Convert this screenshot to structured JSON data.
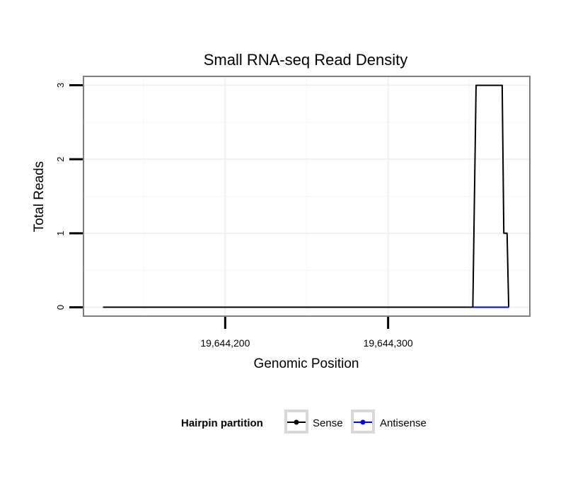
{
  "chart_data": {
    "type": "line",
    "title": "Small RNA-seq Read Density",
    "xlabel": "Genomic Position",
    "ylabel": "Total Reads",
    "xlim": [
      19644113,
      19644387
    ],
    "ylim": [
      -0.12,
      3.12
    ],
    "xticks": [
      19644200,
      19644300
    ],
    "xtick_labels": [
      "19,644,200",
      "19,644,300"
    ],
    "yticks": [
      0,
      1,
      2,
      3
    ],
    "ytick_labels": [
      "0",
      "1",
      "2",
      "3"
    ],
    "grid": true,
    "legend": {
      "title": "Hairpin partition",
      "position": "bottom"
    },
    "series": [
      {
        "name": "Sense",
        "color": "#000000",
        "points": [
          [
            19644125,
            0
          ],
          [
            19644352,
            0
          ],
          [
            19644354,
            3
          ],
          [
            19644370,
            3
          ],
          [
            19644371,
            1
          ],
          [
            19644373,
            1
          ],
          [
            19644374,
            0
          ]
        ]
      },
      {
        "name": "Antisense",
        "color": "#0000ff",
        "points": [
          [
            19644352,
            0
          ],
          [
            19644374,
            0
          ]
        ]
      }
    ]
  }
}
